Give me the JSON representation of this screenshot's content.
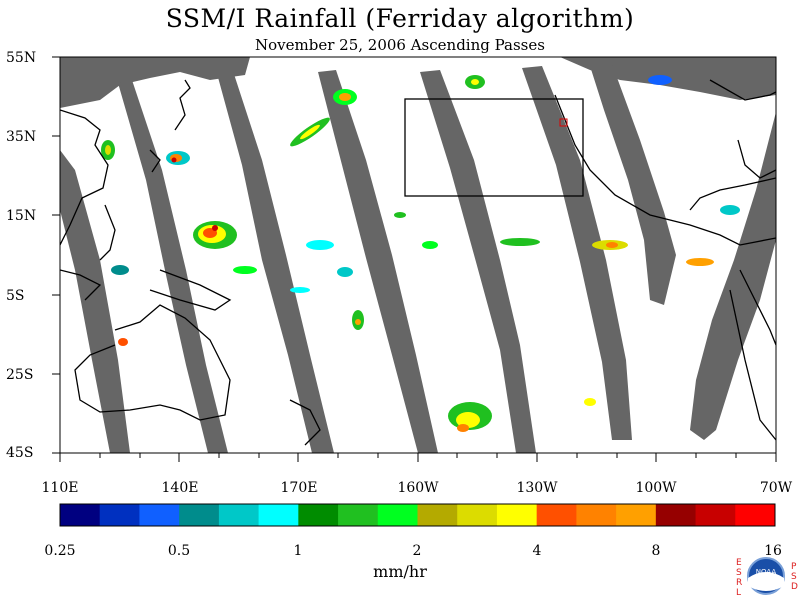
{
  "header": {
    "title": "SSM/I Rainfall (Ferriday algorithm)",
    "subtitle": "November 25, 2006  Ascending Passes"
  },
  "axes": {
    "lat_labels": [
      "55N",
      "35N",
      "15N",
      "5S",
      "25S",
      "45S"
    ],
    "lon_labels": [
      "110E",
      "140E",
      "170E",
      "160W",
      "130W",
      "100W",
      "70W"
    ]
  },
  "colorbar": {
    "tick_labels": [
      "0.25",
      "0.5",
      "1",
      "2",
      "4",
      "8",
      "16"
    ],
    "unit": "mm/hr",
    "colors": [
      "#000080",
      "#0030c0",
      "#1060ff",
      "#008c8c",
      "#00c8c8",
      "#00ffff",
      "#008c00",
      "#20c020",
      "#00ff20",
      "#b4aa00",
      "#dcdc00",
      "#ffff00",
      "#ff5000",
      "#ff8200",
      "#ffa000",
      "#960000",
      "#c80000",
      "#ff0000"
    ]
  },
  "map_colors": {
    "swath_gap": "#666666",
    "ocean_nodata": "#ffffff",
    "coast": "#000000"
  },
  "logo": {
    "label": "NOAA",
    "left_letters": [
      "E",
      "S",
      "R",
      "L"
    ],
    "right_letters": [
      "P",
      "S",
      "D"
    ]
  }
}
